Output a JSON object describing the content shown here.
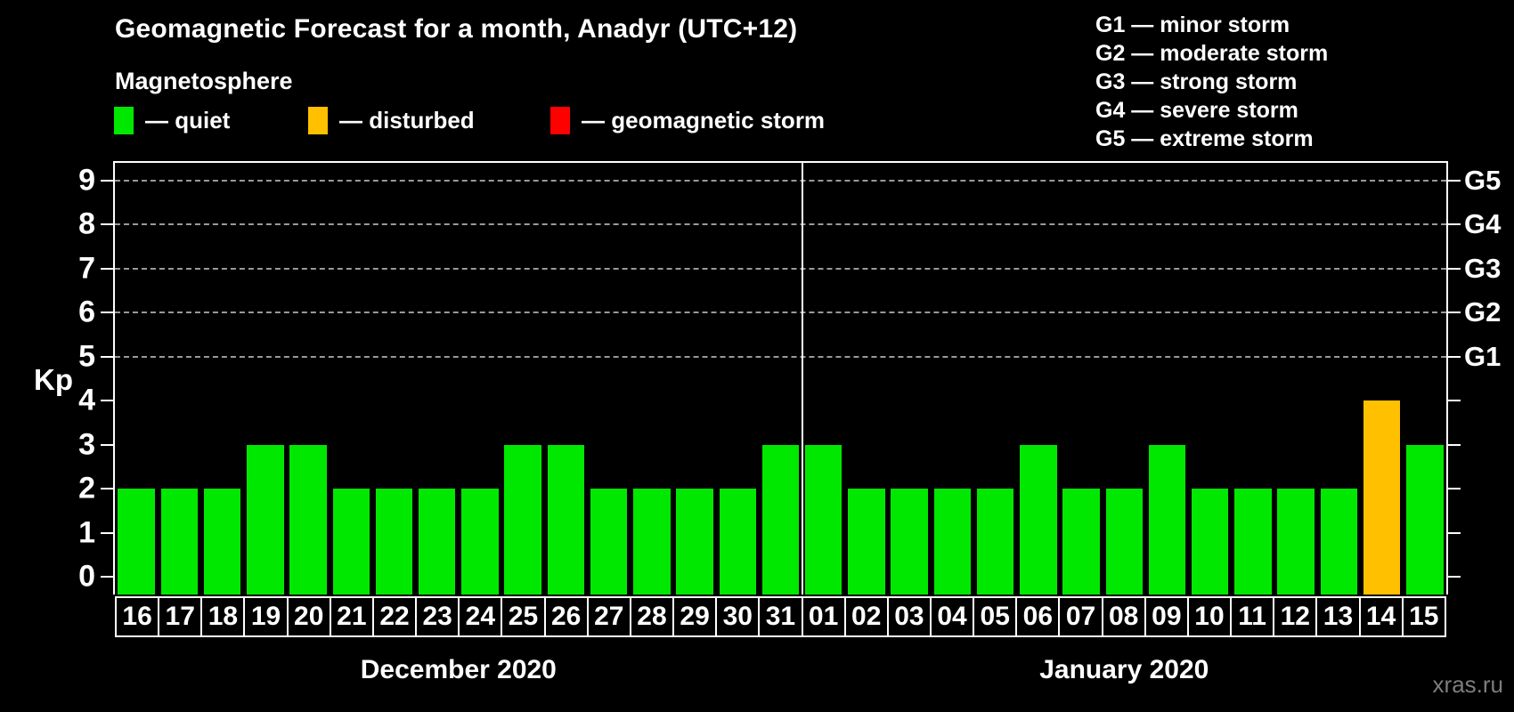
{
  "title": "Geomagnetic Forecast for a month, Anadyr (UTC+12)",
  "subtitle": "Magnetosphere",
  "bar_legend": {
    "items": [
      {
        "label": "— quiet",
        "status": "quiet"
      },
      {
        "label": "— disturbed",
        "status": "disturbed"
      },
      {
        "label": "— geomagnetic storm",
        "status": "storm"
      }
    ]
  },
  "storm_scale_legend": {
    "lines": [
      "G1 — minor storm",
      "G2 — moderate storm",
      "G3 — strong storm",
      "G4 — severe storm",
      "G5 — extreme storm"
    ]
  },
  "watermark": "xras.ru",
  "colors": {
    "quiet": "#00e800",
    "disturbed": "#ffc000",
    "storm": "#ff0000",
    "axis": "#ffffff",
    "gridline": "#999999",
    "watermark_gray": "#7d7d7d"
  },
  "chart_data": {
    "type": "bar",
    "title": "Geomagnetic Forecast for a month, Anadyr (UTC+12)",
    "ylabel": "Kp",
    "ylim": [
      -0.4,
      9.4
    ],
    "y_ticks": [
      0,
      1,
      2,
      3,
      4,
      5,
      6,
      7,
      8,
      9
    ],
    "gridlines_at": [
      5,
      6,
      7,
      8,
      9
    ],
    "grid": "dashed-horizontal-top-half",
    "legend_position": "top",
    "right_axis_labels": [
      {
        "value": 5,
        "label": "G1"
      },
      {
        "value": 6,
        "label": "G2"
      },
      {
        "value": 7,
        "label": "G3"
      },
      {
        "value": 8,
        "label": "G4"
      },
      {
        "value": 9,
        "label": "G5"
      }
    ],
    "months": [
      {
        "label": "December 2020",
        "days": 16
      },
      {
        "label": "January 2020",
        "days": 15
      }
    ],
    "bars": [
      {
        "day": "16",
        "kp": 2,
        "status": "quiet"
      },
      {
        "day": "17",
        "kp": 2,
        "status": "quiet"
      },
      {
        "day": "18",
        "kp": 2,
        "status": "quiet"
      },
      {
        "day": "19",
        "kp": 3,
        "status": "quiet"
      },
      {
        "day": "20",
        "kp": 3,
        "status": "quiet"
      },
      {
        "day": "21",
        "kp": 2,
        "status": "quiet"
      },
      {
        "day": "22",
        "kp": 2,
        "status": "quiet"
      },
      {
        "day": "23",
        "kp": 2,
        "status": "quiet"
      },
      {
        "day": "24",
        "kp": 2,
        "status": "quiet"
      },
      {
        "day": "25",
        "kp": 3,
        "status": "quiet"
      },
      {
        "day": "26",
        "kp": 3,
        "status": "quiet"
      },
      {
        "day": "27",
        "kp": 2,
        "status": "quiet"
      },
      {
        "day": "28",
        "kp": 2,
        "status": "quiet"
      },
      {
        "day": "29",
        "kp": 2,
        "status": "quiet"
      },
      {
        "day": "30",
        "kp": 2,
        "status": "quiet"
      },
      {
        "day": "31",
        "kp": 3,
        "status": "quiet"
      },
      {
        "day": "01",
        "kp": 3,
        "status": "quiet"
      },
      {
        "day": "02",
        "kp": 2,
        "status": "quiet"
      },
      {
        "day": "03",
        "kp": 2,
        "status": "quiet"
      },
      {
        "day": "04",
        "kp": 2,
        "status": "quiet"
      },
      {
        "day": "05",
        "kp": 2,
        "status": "quiet"
      },
      {
        "day": "06",
        "kp": 3,
        "status": "quiet"
      },
      {
        "day": "07",
        "kp": 2,
        "status": "quiet"
      },
      {
        "day": "08",
        "kp": 2,
        "status": "quiet"
      },
      {
        "day": "09",
        "kp": 3,
        "status": "quiet"
      },
      {
        "day": "10",
        "kp": 2,
        "status": "quiet"
      },
      {
        "day": "11",
        "kp": 2,
        "status": "quiet"
      },
      {
        "day": "12",
        "kp": 2,
        "status": "quiet"
      },
      {
        "day": "13",
        "kp": 2,
        "status": "quiet"
      },
      {
        "day": "14",
        "kp": 4,
        "status": "disturbed"
      },
      {
        "day": "15",
        "kp": 3,
        "status": "quiet"
      }
    ]
  }
}
